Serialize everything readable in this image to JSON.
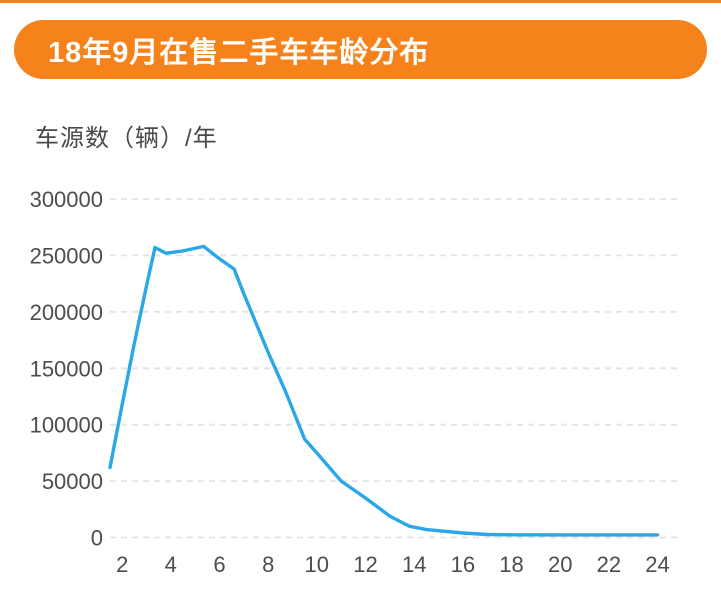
{
  "header": {
    "title": "18年9月在售二手车车龄分布"
  },
  "theme": {
    "accent_orange": "#f5821a",
    "line_blue": "#2aa7e8",
    "gridline_gray": "#e3e3e3",
    "tick_text": "#4d4d4d",
    "axis_title_text": "#4a4a4a",
    "banner_text": "#ffffff",
    "background": "#ffffff"
  },
  "chart_data": {
    "type": "line",
    "title": "18年9月在售二手车车龄分布",
    "xlabel": "",
    "ylabel": "车源数（辆）/年",
    "legend": "none",
    "grid": "horizontal-dashed",
    "line_color": "#2aa7e8",
    "xlim": [
      1.5,
      24.8
    ],
    "ylim": [
      0,
      300000
    ],
    "x_ticks": [
      2,
      4,
      6,
      8,
      10,
      12,
      14,
      16,
      18,
      20,
      22,
      24
    ],
    "y_ticks": [
      0,
      50000,
      100000,
      150000,
      200000,
      250000,
      300000
    ],
    "x": [
      1.5,
      2,
      2.5,
      3,
      3.35,
      3.8,
      4.5,
      5.35,
      6,
      6.6,
      7,
      7.5,
      8,
      8.7,
      9.5,
      10,
      11,
      12,
      13,
      13.8,
      14.5,
      16,
      17,
      18,
      20,
      22,
      24
    ],
    "values": [
      62000,
      118000,
      172000,
      223000,
      257000,
      252000,
      254000,
      258000,
      247000,
      238000,
      216000,
      190000,
      164000,
      130000,
      87000,
      75000,
      50000,
      35000,
      19000,
      10000,
      7000,
      4000,
      2700,
      2400,
      2300,
      2300,
      2300
    ]
  }
}
